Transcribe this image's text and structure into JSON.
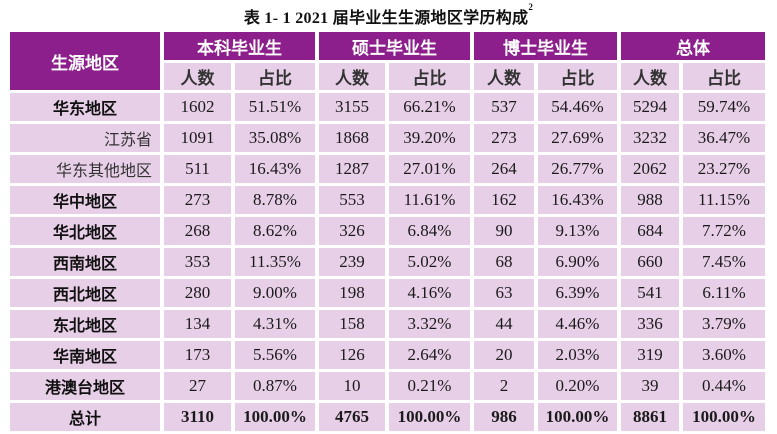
{
  "title": {
    "text": "表 1- 1    2021 届毕业生生源地区学历构成",
    "footnote": "2"
  },
  "colors": {
    "header_bg": "#8c1f8c",
    "cell_bg": "#e8cfe8",
    "header_text": "#ffffff"
  },
  "table": {
    "region_header": "生源地区",
    "groups": [
      {
        "label": "本科毕业生",
        "sub": [
          "人数",
          "占比"
        ]
      },
      {
        "label": "硕士毕业生",
        "sub": [
          "人数",
          "占比"
        ]
      },
      {
        "label": "博士毕业生",
        "sub": [
          "人数",
          "占比"
        ]
      },
      {
        "label": "总体",
        "sub": [
          "人数",
          "占比"
        ]
      }
    ],
    "rows": [
      {
        "region": "华东地区",
        "style": "bold",
        "values": [
          "1602",
          "51.51%",
          "3155",
          "66.21%",
          "537",
          "54.46%",
          "5294",
          "59.74%"
        ]
      },
      {
        "region": "江苏省",
        "style": "sub",
        "values": [
          "1091",
          "35.08%",
          "1868",
          "39.20%",
          "273",
          "27.69%",
          "3232",
          "36.47%"
        ]
      },
      {
        "region": "华东其他地区",
        "style": "sub",
        "values": [
          "511",
          "16.43%",
          "1287",
          "27.01%",
          "264",
          "26.77%",
          "2062",
          "23.27%"
        ]
      },
      {
        "region": "华中地区",
        "style": "bold",
        "values": [
          "273",
          "8.78%",
          "553",
          "11.61%",
          "162",
          "16.43%",
          "988",
          "11.15%"
        ]
      },
      {
        "region": "华北地区",
        "style": "bold",
        "values": [
          "268",
          "8.62%",
          "326",
          "6.84%",
          "90",
          "9.13%",
          "684",
          "7.72%"
        ]
      },
      {
        "region": "西南地区",
        "style": "bold",
        "values": [
          "353",
          "11.35%",
          "239",
          "5.02%",
          "68",
          "6.90%",
          "660",
          "7.45%"
        ]
      },
      {
        "region": "西北地区",
        "style": "bold",
        "values": [
          "280",
          "9.00%",
          "198",
          "4.16%",
          "63",
          "6.39%",
          "541",
          "6.11%"
        ]
      },
      {
        "region": "东北地区",
        "style": "bold",
        "values": [
          "134",
          "4.31%",
          "158",
          "3.32%",
          "44",
          "4.46%",
          "336",
          "3.79%"
        ]
      },
      {
        "region": "华南地区",
        "style": "bold",
        "values": [
          "173",
          "5.56%",
          "126",
          "2.64%",
          "20",
          "2.03%",
          "319",
          "3.60%"
        ]
      },
      {
        "region": "港澳台地区",
        "style": "bold",
        "values": [
          "27",
          "0.87%",
          "10",
          "0.21%",
          "2",
          "0.20%",
          "39",
          "0.44%"
        ]
      },
      {
        "region": "总计",
        "style": "total",
        "values": [
          "3110",
          "100.00%",
          "4765",
          "100.00%",
          "986",
          "100.00%",
          "8861",
          "100.00%"
        ]
      }
    ]
  }
}
